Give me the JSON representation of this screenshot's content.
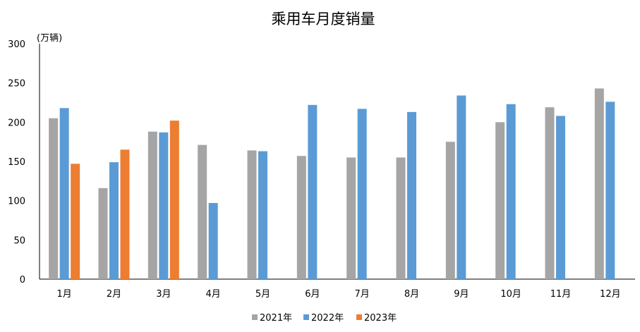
{
  "chart_data": {
    "type": "bar",
    "title": "乘用车月度销量",
    "ylabel": "(万辆)",
    "xlabel": "",
    "ylim": [
      0,
      300
    ],
    "yticks": [
      0,
      50,
      100,
      150,
      200,
      250,
      300
    ],
    "grid": false,
    "legend": "bottom",
    "categories": [
      "1月",
      "2月",
      "3月",
      "4月",
      "5月",
      "6月",
      "7月",
      "8月",
      "9月",
      "10月",
      "11月",
      "12月"
    ],
    "series": [
      {
        "name": "2021年",
        "color": "#a5a5a5",
        "values": [
          205,
          116,
          188,
          171,
          164,
          157,
          155,
          155,
          175,
          200,
          219,
          243
        ]
      },
      {
        "name": "2022年",
        "color": "#5b9bd5",
        "values": [
          218,
          149,
          187,
          97,
          163,
          222,
          217,
          213,
          234,
          223,
          208,
          226
        ]
      },
      {
        "name": "2023年",
        "color": "#ed7d31",
        "values": [
          147,
          165,
          202,
          null,
          null,
          null,
          null,
          null,
          null,
          null,
          null,
          null
        ]
      }
    ]
  }
}
